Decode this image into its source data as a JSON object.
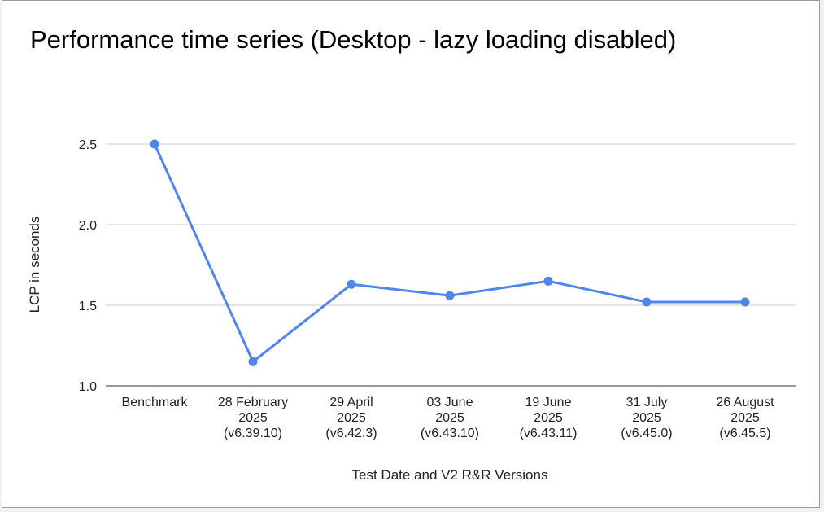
{
  "chart_data": {
    "type": "line",
    "title": "Performance time series (Desktop - lazy loading disabled)",
    "xlabel": "Test Date and V2 R&R Versions",
    "ylabel": "LCP in seconds",
    "categories": [
      [
        "Benchmark"
      ],
      [
        "28 February",
        "2025",
        "(v6.39.10)"
      ],
      [
        "29 April",
        "2025",
        "(v6.42.3)"
      ],
      [
        "03 June",
        "2025",
        "(v6.43.10)"
      ],
      [
        "19 June",
        "2025",
        "(v6.43.11)"
      ],
      [
        "31 July",
        "2025",
        "(v6.45.0)"
      ],
      [
        "26 August",
        "2025",
        "(v6.45.5)"
      ]
    ],
    "series": [
      {
        "values": [
          2.5,
          1.15,
          1.63,
          1.56,
          1.65,
          1.52,
          1.52
        ],
        "color": "#5085ec"
      }
    ],
    "ylim": [
      1.0,
      2.5
    ],
    "yticks": [
      "1.0",
      "1.5",
      "2.0",
      "2.5"
    ],
    "ytick_values": [
      1.0,
      1.5,
      2.0,
      2.5
    ],
    "grid": true,
    "legend": "none",
    "colors": {
      "line": "#5085ec",
      "grid": "#cccccc",
      "text": "#222222"
    }
  }
}
